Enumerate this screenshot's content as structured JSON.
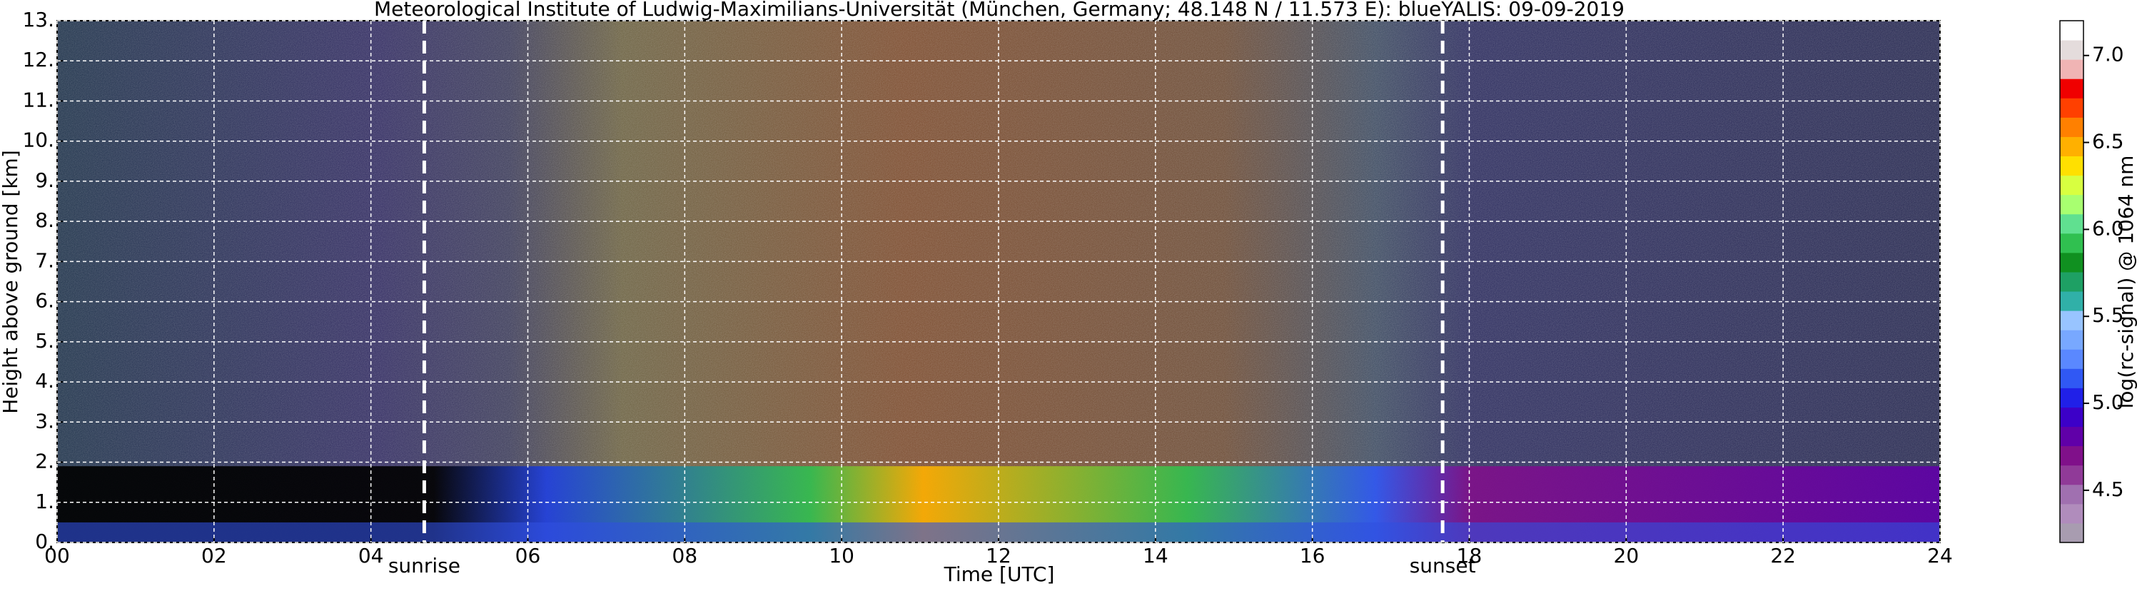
{
  "chart_data": {
    "type": "heatmap",
    "title": "Meteorological Institute of Ludwig-Maximilians-Universität (München, Germany; 48.148 N / 11.573 E):     blueYALIS: 09-09-2019",
    "xlabel": "Time [UTC]",
    "ylabel": "Height above ground [km]",
    "xlim": [
      0,
      24
    ],
    "xticks": [
      {
        "value": 0,
        "label": "00"
      },
      {
        "value": 2,
        "label": "02"
      },
      {
        "value": 4,
        "label": "04"
      },
      {
        "value": 6,
        "label": "06"
      },
      {
        "value": 8,
        "label": "08"
      },
      {
        "value": 10,
        "label": "10"
      },
      {
        "value": 12,
        "label": "12"
      },
      {
        "value": 14,
        "label": "14"
      },
      {
        "value": 16,
        "label": "16"
      },
      {
        "value": 18,
        "label": "18"
      },
      {
        "value": 20,
        "label": "20"
      },
      {
        "value": 22,
        "label": "22"
      },
      {
        "value": 24,
        "label": "24"
      }
    ],
    "ylim": [
      0,
      13
    ],
    "yticks": [
      {
        "value": 0,
        "label": "0."
      },
      {
        "value": 1,
        "label": "1."
      },
      {
        "value": 2,
        "label": "2."
      },
      {
        "value": 3,
        "label": "3."
      },
      {
        "value": 4,
        "label": "4."
      },
      {
        "value": 5,
        "label": "5."
      },
      {
        "value": 6,
        "label": "6."
      },
      {
        "value": 7,
        "label": "7."
      },
      {
        "value": 8,
        "label": "8."
      },
      {
        "value": 9,
        "label": "9."
      },
      {
        "value": 10,
        "label": "10."
      },
      {
        "value": 11,
        "label": "11."
      },
      {
        "value": 12,
        "label": "12."
      },
      {
        "value": 13,
        "label": "13."
      }
    ],
    "grid": true,
    "annotations": [
      {
        "x": 4.68,
        "label": "sunrise"
      },
      {
        "x": 17.66,
        "label": "sunset"
      }
    ],
    "colorbar": {
      "label": "log(rc-signal) @ 1064 nm",
      "clim": [
        4.2,
        7.2
      ],
      "ticks": [
        4.5,
        {
          "value": 5.0,
          "label": "5.0"
        },
        5.5,
        {
          "value": 6.0,
          "label": "6.0"
        },
        6.5,
        {
          "value": 7.0,
          "label": "7.0"
        }
      ],
      "colors": [
        "#a89cb0",
        "#b08cbc",
        "#a070b0",
        "#903a98",
        "#80108a",
        "#6000a8",
        "#3c00c8",
        "#2020e8",
        "#3058f4",
        "#5a88ff",
        "#78a8ff",
        "#98c4ff",
        "#30b0a8",
        "#1ea064",
        "#109020",
        "#30c050",
        "#60e090",
        "#a8ff70",
        "#d8ff40",
        "#ffe000",
        "#ffb000",
        "#ff8000",
        "#ff4000",
        "#f00000",
        "#f0b4b4",
        "#e4dcdc",
        "#ffffff"
      ]
    }
  }
}
